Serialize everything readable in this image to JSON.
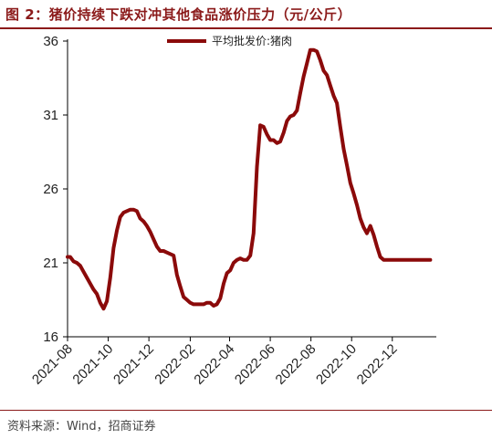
{
  "figure": {
    "title": "图 2：猪价持续下跌对冲其他食品涨价压力（元/公斤）",
    "source": "资料来源：Wind，招商证券"
  },
  "colors": {
    "series": "#8b0a0a",
    "title": "#8b1a1a",
    "axis": "#000000"
  },
  "chart_data": {
    "type": "line",
    "title": "",
    "xlabel": "",
    "ylabel": "",
    "ylim": [
      16,
      36
    ],
    "yticks": [
      16,
      21,
      26,
      31,
      36
    ],
    "xlim": [
      "2021-08-01",
      "2023-02-05"
    ],
    "xticks": [
      "2021-08",
      "2021-10",
      "2021-12",
      "2022-02",
      "2022-04",
      "2022-06",
      "2022-08",
      "2022-10",
      "2022-12"
    ],
    "grid": false,
    "legend_position": "top-center",
    "series": [
      {
        "name": "平均批发价:猪肉",
        "x": [
          "2021-08-01",
          "2021-08-05",
          "2021-08-10",
          "2021-08-15",
          "2021-08-20",
          "2021-08-25",
          "2021-08-30",
          "2021-09-04",
          "2021-09-09",
          "2021-09-14",
          "2021-09-19",
          "2021-09-24",
          "2021-09-29",
          "2021-10-04",
          "2021-10-09",
          "2021-10-14",
          "2021-10-19",
          "2021-10-24",
          "2021-10-29",
          "2021-11-03",
          "2021-11-08",
          "2021-11-13",
          "2021-11-18",
          "2021-11-23",
          "2021-11-28",
          "2021-12-03",
          "2021-12-08",
          "2021-12-13",
          "2021-12-18",
          "2021-12-23",
          "2021-12-28",
          "2022-01-02",
          "2022-01-07",
          "2022-01-12",
          "2022-01-17",
          "2022-01-22",
          "2022-01-27",
          "2022-02-01",
          "2022-02-06",
          "2022-02-11",
          "2022-02-16",
          "2022-02-21",
          "2022-02-26",
          "2022-03-03",
          "2022-03-08",
          "2022-03-13",
          "2022-03-18",
          "2022-03-23",
          "2022-03-28",
          "2022-04-02",
          "2022-04-07",
          "2022-04-12",
          "2022-04-17",
          "2022-04-22",
          "2022-04-27",
          "2022-05-02",
          "2022-05-07",
          "2022-05-12",
          "2022-05-17",
          "2022-05-22",
          "2022-05-27",
          "2022-06-01",
          "2022-06-06",
          "2022-06-11",
          "2022-06-16",
          "2022-06-21",
          "2022-06-26",
          "2022-07-01",
          "2022-07-06",
          "2022-07-11",
          "2022-07-16",
          "2022-07-21",
          "2022-07-26",
          "2022-07-31",
          "2022-08-05",
          "2022-08-10",
          "2022-08-15",
          "2022-08-20",
          "2022-08-25",
          "2022-08-30",
          "2022-09-04",
          "2022-09-09",
          "2022-09-14",
          "2022-09-19",
          "2022-09-24",
          "2022-09-29",
          "2022-10-04",
          "2022-10-09",
          "2022-10-14",
          "2022-10-19",
          "2022-10-24",
          "2022-10-29",
          "2022-11-03",
          "2022-11-08",
          "2022-11-13",
          "2022-11-18",
          "2022-11-23",
          "2022-11-28",
          "2022-12-03",
          "2022-12-08",
          "2022-12-13",
          "2022-12-18",
          "2022-12-23",
          "2022-12-28",
          "2023-01-02",
          "2023-01-07",
          "2023-01-12",
          "2023-01-17",
          "2023-01-22",
          "2023-01-27",
          "2023-02-01",
          "2023-02-05"
        ],
        "values": [
          21.4,
          21.4,
          21.1,
          21.0,
          20.8,
          20.4,
          20.0,
          19.6,
          19.2,
          18.9,
          18.3,
          17.9,
          18.4,
          20.0,
          22.0,
          23.2,
          24.1,
          24.4,
          24.5,
          24.6,
          24.6,
          24.5,
          24.0,
          23.8,
          23.5,
          23.1,
          22.6,
          22.1,
          21.8,
          21.8,
          21.7,
          21.6,
          21.5,
          20.2,
          19.4,
          18.7,
          18.5,
          18.3,
          18.2,
          18.2,
          18.2,
          18.2,
          18.3,
          18.3,
          18.1,
          18.2,
          18.6,
          19.6,
          20.3,
          20.5,
          21.0,
          21.2,
          21.3,
          21.2,
          21.2,
          21.5,
          23.0,
          27.5,
          30.3,
          30.2,
          29.7,
          29.3,
          29.3,
          29.1,
          29.2,
          29.8,
          30.6,
          30.9,
          31.0,
          31.3,
          32.5,
          33.6,
          34.5,
          35.4,
          35.4,
          35.3,
          34.7,
          34.0,
          33.7,
          33.0,
          32.3,
          31.8,
          30.2,
          28.7,
          27.6,
          26.4,
          25.7,
          24.9,
          24.0,
          23.4,
          23.0,
          23.5,
          22.9,
          22.1,
          21.4,
          21.2,
          21.2,
          21.2,
          21.2,
          21.2,
          21.2,
          21.2,
          21.2,
          21.2,
          21.2,
          21.2,
          21.2,
          21.2,
          21.2,
          21.2,
          21.2,
          21.2
        ]
      }
    ]
  }
}
